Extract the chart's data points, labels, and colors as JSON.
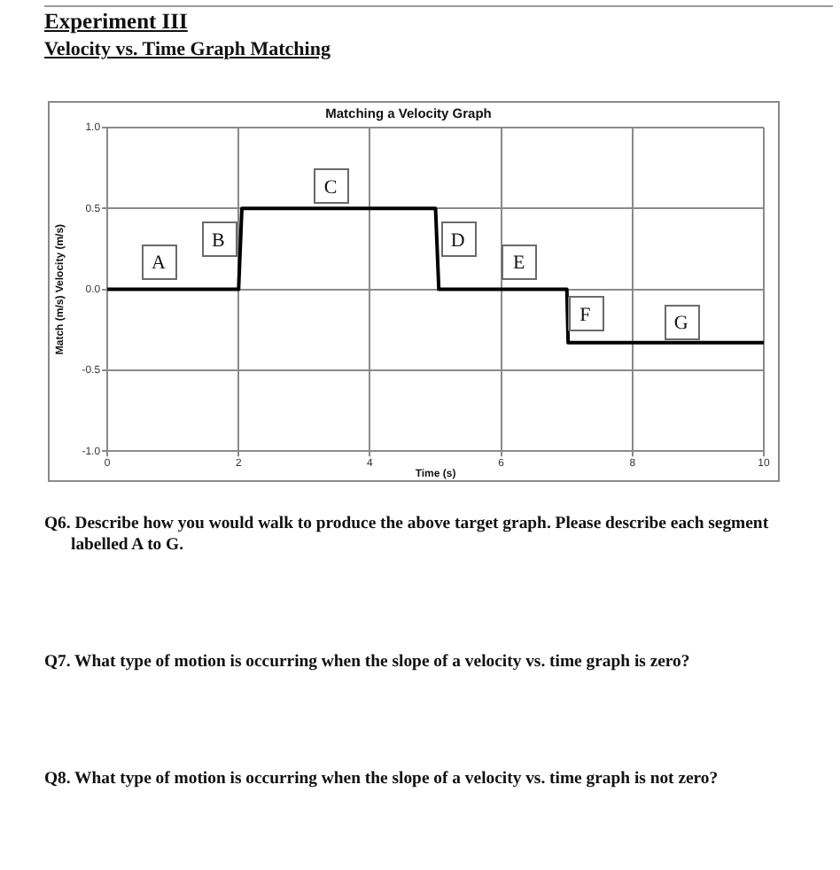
{
  "chart_data": {
    "type": "line",
    "title": "Matching a Velocity Graph",
    "xlabel": "Time (s)",
    "ylabel": "Match (m/s) Velocity (m/s)",
    "x": [
      0,
      2,
      2.05,
      5,
      5.05,
      7,
      7.02,
      10
    ],
    "series": [
      {
        "color": "#000000",
        "values": [
          0,
          0,
          0.5,
          0.5,
          0,
          0,
          -0.33,
          -0.33
        ]
      }
    ],
    "xlim": [
      0,
      10
    ],
    "xticks": [
      0,
      2,
      4,
      6,
      8,
      10
    ],
    "ylim": [
      -1,
      1
    ],
    "yticks": [
      {
        "value": -1,
        "label": "-1.0"
      },
      {
        "value": -0.5,
        "label": "-0.5"
      },
      {
        "value": 0,
        "label": "0.0"
      },
      {
        "value": 0.5,
        "label": "0.5"
      },
      {
        "value": 1,
        "label": "1.0"
      }
    ],
    "grid": true,
    "marker": "none",
    "line_style": "solid",
    "annotations": [
      "Experiment III",
      "Velocity vs. Time Graph Matching",
      {
        "text": "A",
        "x": 0.78,
        "y": 0.17
      },
      {
        "text": "B",
        "x": 1.69,
        "y": 0.31
      },
      {
        "text": "C",
        "x": 3.4,
        "y": 0.64
      },
      {
        "text": "D",
        "x": 5.34,
        "y": 0.31
      },
      {
        "text": "E",
        "x": 6.27,
        "y": 0.17
      },
      {
        "text": "F",
        "x": 7.28,
        "y": -0.15
      },
      {
        "text": "G",
        "x": 8.74,
        "y": -0.2
      },
      "Q6. Describe how you would walk to produce the above target graph. Please describe each segment labelled A to G.",
      "Q7. What type of motion is occurring when the slope of a velocity vs. time graph is zero?",
      "Q8. What type of motion is occurring when the slope of a velocity vs. time graph is not zero?"
    ]
  }
}
